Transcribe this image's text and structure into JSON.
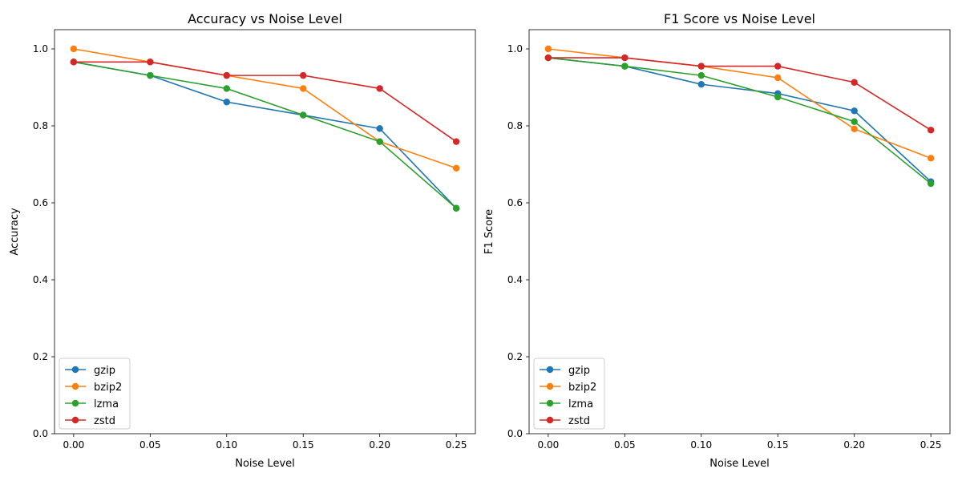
{
  "chart_data": [
    {
      "type": "line",
      "title": "Accuracy vs Noise Level",
      "xlabel": "Noise Level",
      "ylabel": "Accuracy",
      "x": [
        0.0,
        0.05,
        0.1,
        0.15,
        0.2,
        0.25
      ],
      "xticks": [
        "0.00",
        "0.05",
        "0.10",
        "0.15",
        "0.20",
        "0.25"
      ],
      "yticks": [
        "0.0",
        "0.2",
        "0.4",
        "0.6",
        "0.8",
        "1.0"
      ],
      "xlim": [
        -0.0125,
        0.2625
      ],
      "ylim": [
        0,
        1.05
      ],
      "grid": false,
      "legend_position": "lower-left",
      "series": [
        {
          "name": "gzip",
          "color": "#1f77b4",
          "values": [
            0.966,
            0.931,
            0.862,
            0.828,
            0.793,
            0.586
          ]
        },
        {
          "name": "bzip2",
          "color": "#ff7f0e",
          "values": [
            1.0,
            0.966,
            0.931,
            0.897,
            0.759,
            0.69
          ]
        },
        {
          "name": "lzma",
          "color": "#2ca02c",
          "values": [
            0.966,
            0.931,
            0.897,
            0.828,
            0.759,
            0.586
          ]
        },
        {
          "name": "zstd",
          "color": "#d62728",
          "values": [
            0.966,
            0.966,
            0.931,
            0.931,
            0.897,
            0.759
          ]
        }
      ]
    },
    {
      "type": "line",
      "title": "F1 Score vs Noise Level",
      "xlabel": "Noise Level",
      "ylabel": "F1 Score",
      "x": [
        0.0,
        0.05,
        0.1,
        0.15,
        0.2,
        0.25
      ],
      "xticks": [
        "0.00",
        "0.05",
        "0.10",
        "0.15",
        "0.20",
        "0.25"
      ],
      "yticks": [
        "0.0",
        "0.2",
        "0.4",
        "0.6",
        "0.8",
        "1.0"
      ],
      "xlim": [
        -0.0125,
        0.2625
      ],
      "ylim": [
        0,
        1.05
      ],
      "grid": false,
      "legend_position": "lower-left",
      "series": [
        {
          "name": "gzip",
          "color": "#1f77b4",
          "values": [
            0.977,
            0.955,
            0.908,
            0.884,
            0.839,
            0.655
          ]
        },
        {
          "name": "bzip2",
          "color": "#ff7f0e",
          "values": [
            1.0,
            0.977,
            0.955,
            0.925,
            0.792,
            0.716
          ]
        },
        {
          "name": "lzma",
          "color": "#2ca02c",
          "values": [
            0.977,
            0.955,
            0.931,
            0.875,
            0.811,
            0.65
          ]
        },
        {
          "name": "zstd",
          "color": "#d62728",
          "values": [
            0.977,
            0.977,
            0.955,
            0.955,
            0.913,
            0.789
          ]
        }
      ]
    }
  ]
}
